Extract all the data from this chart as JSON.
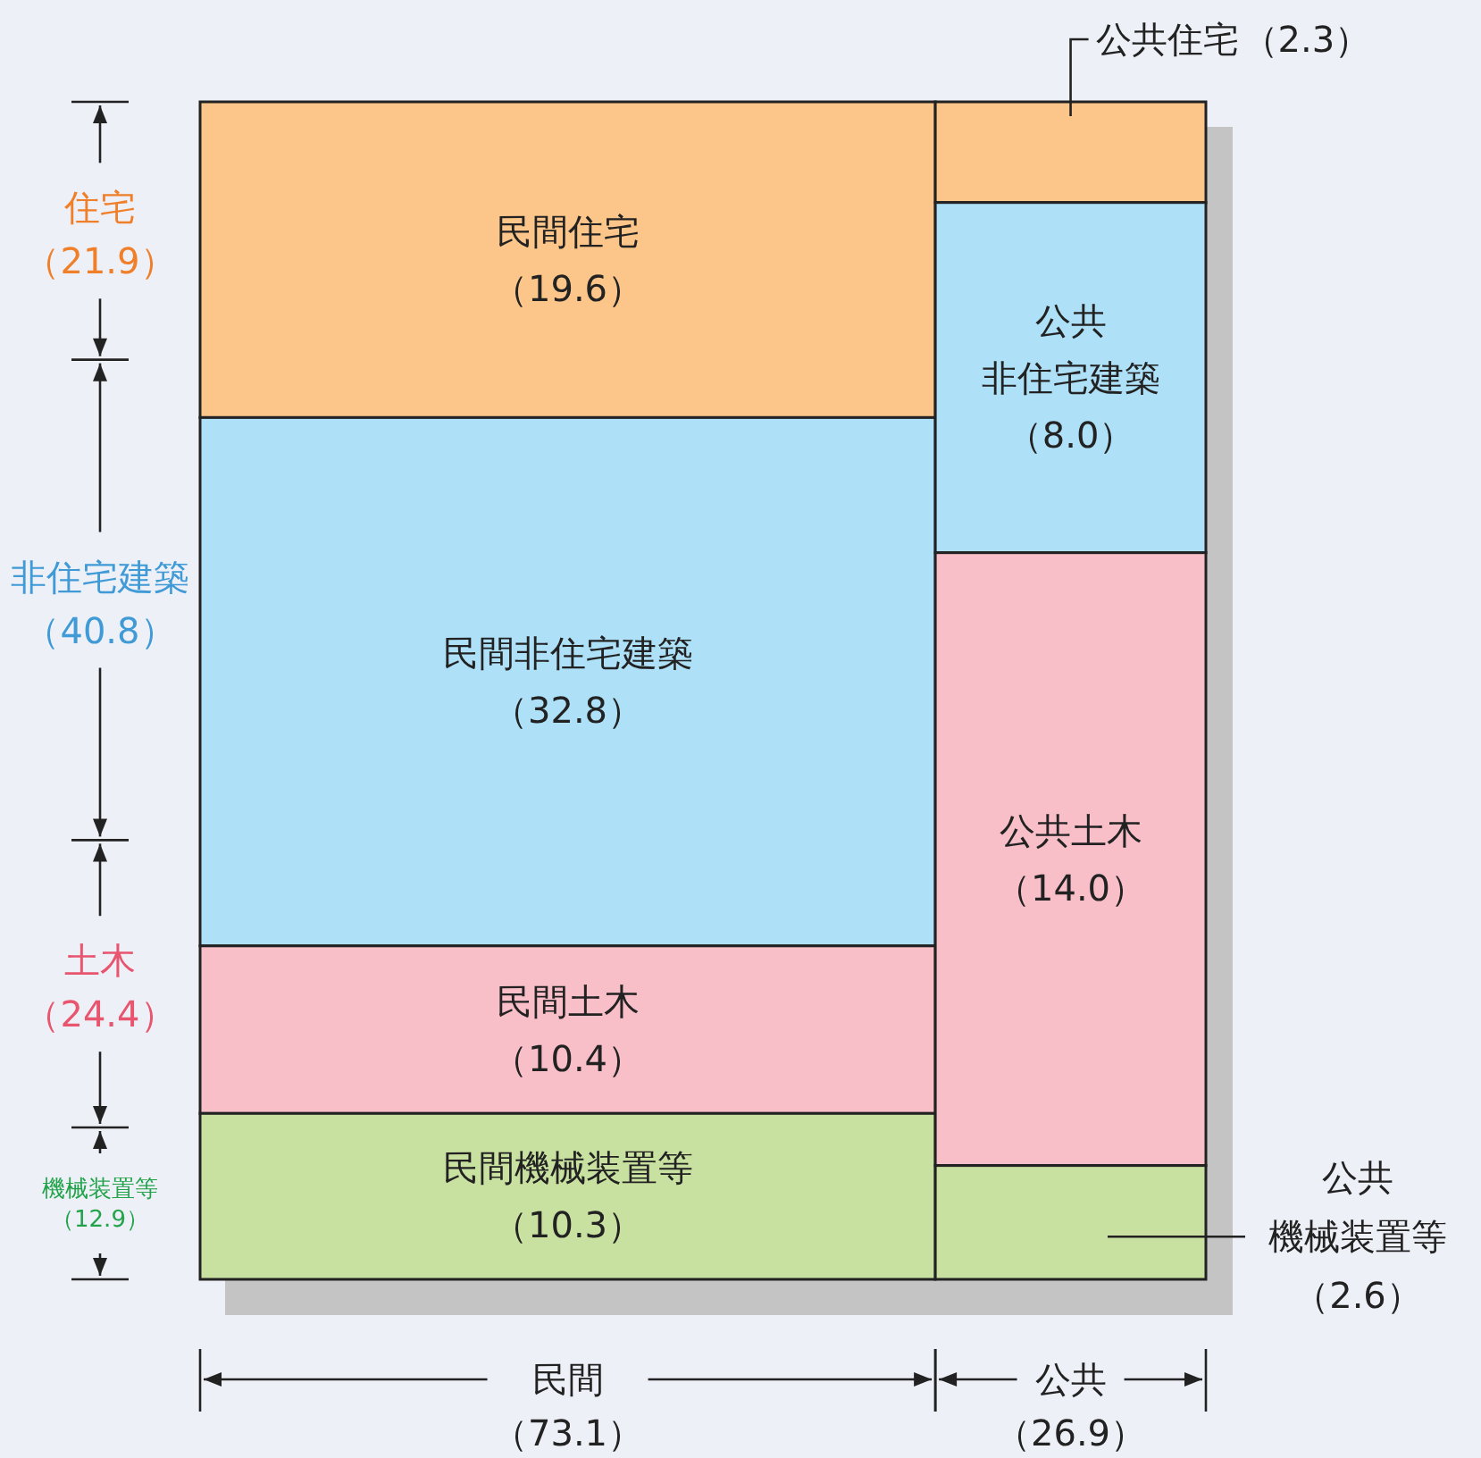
{
  "chart_data": {
    "type": "other",
    "legend": "left",
    "categories": [
      "民間",
      "公共"
    ],
    "values": [
      73.1,
      26.9
    ],
    "value_labels": [
      "（73.1）",
      "（26.9）"
    ],
    "totals": [
      "（21.9）",
      "（40.8）",
      "（24.4）",
      "（12.9）"
    ],
    "series": [
      {
        "name": "住宅",
        "color": "#fcc68a",
        "values": [
          19.6,
          2.3
        ],
        "value_labels": [
          "（19.6）",
          "（2.3）"
        ]
      },
      {
        "name": "非住宅建築",
        "color": "#aee0f8",
        "values": [
          32.8,
          8.0
        ],
        "value_labels": [
          "（32.8）",
          "（8.0）"
        ]
      },
      {
        "name": "土木",
        "color": "#f8bfc8",
        "values": [
          10.4,
          14.0
        ],
        "value_labels": [
          "（10.4）",
          "（14.0）"
        ]
      },
      {
        "name": "機械装置等",
        "color": "#c8e0a0",
        "values": [
          10.3,
          2.6
        ],
        "value_labels": [
          "（10.3）",
          "（2.6）"
        ]
      }
    ],
    "cell_labels": [
      [
        "民間住宅",
        "公共住宅"
      ],
      [
        "民間非住宅建築",
        [
          "公共",
          "非住宅建築"
        ]
      ],
      [
        "民間土木",
        "公共土木"
      ],
      [
        "民間機械装置等",
        [
          "公共",
          "機械装置等"
        ]
      ]
    ]
  }
}
